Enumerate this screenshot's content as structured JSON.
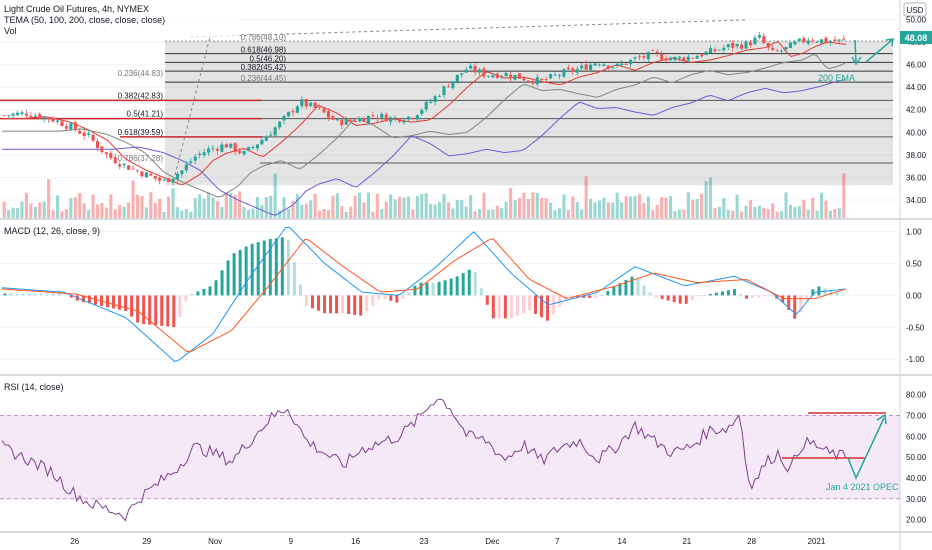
{
  "header": {
    "title": "Light Crude Oil Futures, 4h, NYMEX",
    "indicator1": "TEMA (50, 100, 200, close, close, close)",
    "indicator2": "Vol",
    "currency": "USD",
    "last_price": "48.08"
  },
  "chart_data": [
    {
      "type": "candlestick",
      "pane": "price",
      "y_ticks": [
        34,
        36,
        38,
        40,
        42,
        44,
        46,
        48,
        50
      ],
      "y_tick_labels": [
        "34.00",
        "36.00",
        "38.00",
        "40.00",
        "42.00",
        "44.00",
        "46.00",
        "48.00",
        "50.00"
      ],
      "ylim": [
        32.4,
        51.2
      ],
      "x_tick_labels": [
        "26",
        "29",
        "Nov",
        "9",
        "16",
        "23",
        "Dec",
        "7",
        "14",
        "21",
        "28",
        "2021"
      ],
      "close_path": [
        [
          0,
          41.5
        ],
        [
          4,
          41.7
        ],
        [
          8,
          41.2
        ],
        [
          11,
          40.5
        ],
        [
          14,
          39.6
        ],
        [
          17,
          37.9
        ],
        [
          20,
          37.0
        ],
        [
          23,
          36.3
        ],
        [
          26,
          35.6
        ],
        [
          29,
          36.6
        ],
        [
          31,
          37.8
        ],
        [
          33,
          38.4
        ],
        [
          36,
          38.9
        ],
        [
          39,
          38.1
        ],
        [
          42,
          39.4
        ],
        [
          45,
          40.9
        ],
        [
          48,
          42.7
        ],
        [
          51,
          42.0
        ],
        [
          54,
          40.9
        ],
        [
          57,
          41.1
        ],
        [
          60,
          41.5
        ],
        [
          63,
          41.2
        ],
        [
          66,
          41.4
        ],
        [
          69,
          42.7
        ],
        [
          72,
          44.3
        ],
        [
          75,
          45.7
        ],
        [
          78,
          45.1
        ],
        [
          81,
          45.2
        ],
        [
          84,
          44.8
        ],
        [
          87,
          44.5
        ],
        [
          90,
          45.2
        ],
        [
          93,
          45.6
        ],
        [
          96,
          46.3
        ],
        [
          99,
          45.8
        ],
        [
          102,
          46.5
        ],
        [
          105,
          46.9
        ],
        [
          108,
          46.5
        ],
        [
          111,
          46.7
        ],
        [
          114,
          47.1
        ],
        [
          117,
          47.6
        ],
        [
          120,
          47.8
        ],
        [
          122,
          48.4
        ],
        [
          124,
          47.0
        ],
        [
          126,
          47.3
        ],
        [
          128,
          47.9
        ],
        [
          130,
          48.3
        ],
        [
          133,
          48.1
        ],
        [
          136,
          48.08
        ]
      ],
      "x_range": [
        0,
        136
      ],
      "series": [
        {
          "name": "TEMA 50",
          "color": "#e53935"
        },
        {
          "name": "TEMA 100",
          "color": "#7b8a7b"
        },
        {
          "name": "TEMA 200",
          "color": "#6b5bd6"
        }
      ],
      "annotations": {
        "fib_left": [
          {
            "label": "0.5(41.21)",
            "value": 41.21
          },
          {
            "label": "0.382(42.83)",
            "value": 42.83
          },
          {
            "label": "0.618(39.59)",
            "value": 39.59
          },
          {
            "label": "0.236(44.83)",
            "value": 44.83
          },
          {
            "label": "0.786(37.28)",
            "value": 37.28
          }
        ],
        "fib_right": [
          {
            "label": "0.786(48.10)",
            "value": 48.1
          },
          {
            "label": "0.618(46.98)",
            "value": 46.98
          },
          {
            "label": "0.5(46.20)",
            "value": 46.2
          },
          {
            "label": "0.382(45.42)",
            "value": 45.42
          },
          {
            "label": "0.236(44.45)",
            "value": 44.45
          }
        ],
        "ema_label": "200 EMA"
      }
    },
    {
      "type": "line",
      "pane": "macd",
      "title": "MACD (12, 26, close, 9)",
      "y_ticks": [
        -1.0,
        -0.5,
        0,
        0.5,
        1.0
      ],
      "y_tick_labels": [
        "-1.00",
        "-0.50",
        "0.00",
        "0.50",
        "1.00"
      ],
      "ylim": [
        -1.2,
        1.15
      ],
      "macd_path": [
        [
          0,
          0.12
        ],
        [
          10,
          0.05
        ],
        [
          20,
          -0.35
        ],
        [
          28,
          -1.05
        ],
        [
          34,
          -0.6
        ],
        [
          40,
          0.3
        ],
        [
          46,
          1.1
        ],
        [
          52,
          0.5
        ],
        [
          58,
          0.05
        ],
        [
          64,
          0.0
        ],
        [
          70,
          0.45
        ],
        [
          76,
          1.0
        ],
        [
          82,
          0.35
        ],
        [
          88,
          -0.15
        ],
        [
          96,
          0.05
        ],
        [
          102,
          0.45
        ],
        [
          110,
          0.15
        ],
        [
          118,
          0.3
        ],
        [
          124,
          0.05
        ],
        [
          128,
          -0.3
        ],
        [
          131,
          0.05
        ],
        [
          136,
          0.1
        ]
      ],
      "signal_path": [
        [
          0,
          0.1
        ],
        [
          12,
          0.02
        ],
        [
          22,
          -0.25
        ],
        [
          30,
          -0.9
        ],
        [
          37,
          -0.55
        ],
        [
          43,
          0.15
        ],
        [
          49,
          0.9
        ],
        [
          55,
          0.45
        ],
        [
          61,
          0.05
        ],
        [
          67,
          0.1
        ],
        [
          73,
          0.55
        ],
        [
          79,
          0.9
        ],
        [
          85,
          0.25
        ],
        [
          91,
          -0.05
        ],
        [
          99,
          0.15
        ],
        [
          105,
          0.35
        ],
        [
          112,
          0.2
        ],
        [
          120,
          0.25
        ],
        [
          126,
          -0.05
        ],
        [
          131,
          -0.05
        ],
        [
          136,
          0.1
        ]
      ]
    },
    {
      "type": "line",
      "pane": "rsi",
      "title": "RSI (14, close)",
      "y_ticks": [
        20,
        30,
        40,
        50,
        60,
        70,
        80
      ],
      "y_tick_labels": [
        "20.00",
        "30.00",
        "40.00",
        "50.00",
        "60.00",
        "70.00",
        "80.00"
      ],
      "ylim": [
        15,
        88
      ],
      "bands": [
        30,
        70
      ],
      "rsi_path": [
        [
          0,
          55
        ],
        [
          4,
          49
        ],
        [
          8,
          43
        ],
        [
          11,
          34
        ],
        [
          14,
          28
        ],
        [
          17,
          25
        ],
        [
          20,
          22
        ],
        [
          22,
          30
        ],
        [
          25,
          37
        ],
        [
          28,
          44
        ],
        [
          31,
          55
        ],
        [
          34,
          52
        ],
        [
          37,
          48
        ],
        [
          40,
          58
        ],
        [
          43,
          68
        ],
        [
          46,
          74
        ],
        [
          49,
          58
        ],
        [
          52,
          52
        ],
        [
          55,
          46
        ],
        [
          58,
          54
        ],
        [
          61,
          57
        ],
        [
          64,
          60
        ],
        [
          67,
          68
        ],
        [
          70,
          79
        ],
        [
          72,
          75
        ],
        [
          75,
          60
        ],
        [
          78,
          58
        ],
        [
          81,
          49
        ],
        [
          84,
          56
        ],
        [
          87,
          48
        ],
        [
          90,
          55
        ],
        [
          93,
          58
        ],
        [
          96,
          49
        ],
        [
          99,
          55
        ],
        [
          102,
          65
        ],
        [
          105,
          58
        ],
        [
          108,
          52
        ],
        [
          111,
          55
        ],
        [
          114,
          63
        ],
        [
          117,
          64
        ],
        [
          119,
          71
        ],
        [
          120,
          42
        ],
        [
          121,
          37
        ],
        [
          123,
          47
        ],
        [
          125,
          52
        ],
        [
          127,
          44
        ],
        [
          129,
          57
        ],
        [
          131,
          56
        ],
        [
          133,
          52
        ],
        [
          136,
          50
        ]
      ],
      "annotation_label": "Jan 4 2021 OPEC"
    }
  ]
}
